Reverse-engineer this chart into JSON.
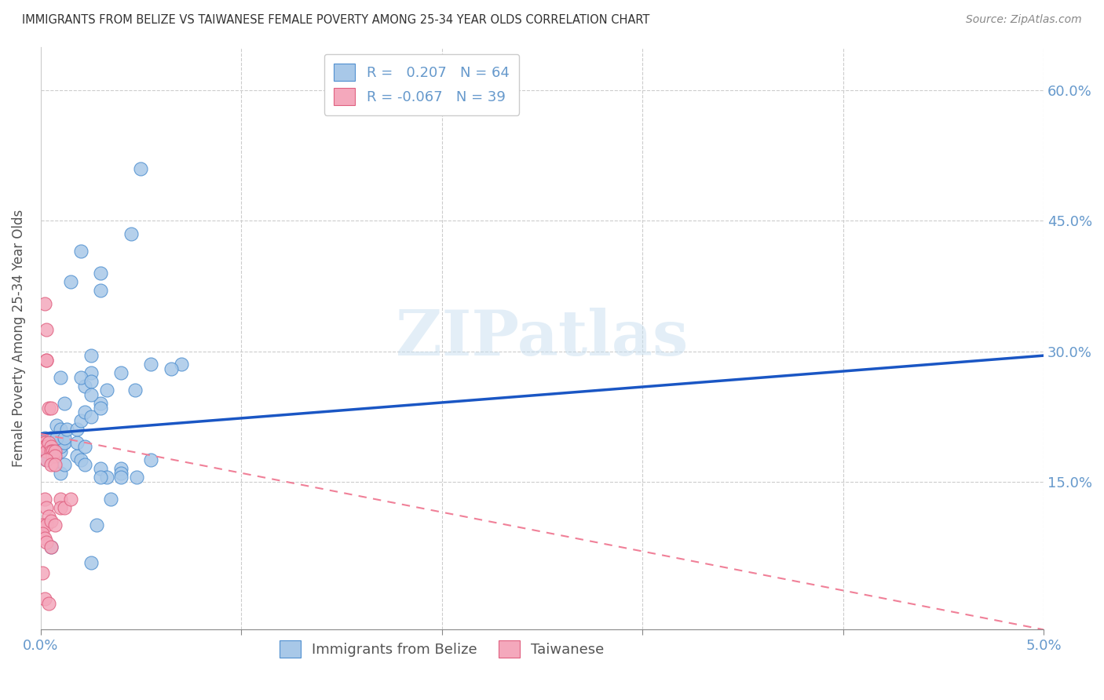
{
  "title": "IMMIGRANTS FROM BELIZE VS TAIWANESE FEMALE POVERTY AMONG 25-34 YEAR OLDS CORRELATION CHART",
  "source": "Source: ZipAtlas.com",
  "ylabel": "Female Poverty Among 25-34 Year Olds",
  "xlabel": "",
  "xlim": [
    0.0,
    5.0
  ],
  "ylim": [
    -2.0,
    65.0
  ],
  "legend_r1_label": "R =   0.207   N = 64",
  "legend_r2_label": "R = -0.067   N = 39",
  "belize_color": "#a8c8e8",
  "taiwanese_color": "#f4a8bc",
  "belize_edge_color": "#5090d0",
  "taiwanese_edge_color": "#e06080",
  "belize_line_color": "#1a56c4",
  "taiwanese_line_color": "#f08098",
  "background_color": "#ffffff",
  "grid_color": "#cccccc",
  "title_color": "#333333",
  "axis_label_color": "#6699cc",
  "belize_scatter": [
    [
      0.08,
      21.5
    ],
    [
      0.12,
      19.5
    ],
    [
      0.25,
      27.5
    ],
    [
      0.45,
      43.5
    ],
    [
      0.2,
      41.5
    ],
    [
      0.18,
      18.0
    ],
    [
      0.22,
      26.0
    ],
    [
      0.3,
      37.0
    ],
    [
      0.15,
      38.0
    ],
    [
      0.3,
      39.0
    ],
    [
      0.1,
      27.0
    ],
    [
      0.2,
      27.0
    ],
    [
      0.25,
      26.5
    ],
    [
      0.1,
      21.0
    ],
    [
      0.12,
      24.0
    ],
    [
      0.3,
      24.0
    ],
    [
      0.33,
      25.5
    ],
    [
      0.25,
      25.0
    ],
    [
      0.4,
      27.5
    ],
    [
      0.47,
      25.5
    ],
    [
      0.02,
      20.0
    ],
    [
      0.03,
      19.5
    ],
    [
      0.03,
      18.5
    ],
    [
      0.05,
      20.0
    ],
    [
      0.04,
      19.0
    ],
    [
      0.04,
      18.0
    ],
    [
      0.06,
      19.5
    ],
    [
      0.08,
      19.0
    ],
    [
      0.1,
      18.5
    ],
    [
      0.1,
      19.0
    ],
    [
      0.12,
      19.5
    ],
    [
      0.18,
      19.5
    ],
    [
      0.08,
      20.0
    ],
    [
      0.12,
      20.0
    ],
    [
      0.13,
      21.0
    ],
    [
      0.18,
      21.0
    ],
    [
      0.2,
      22.0
    ],
    [
      0.22,
      23.0
    ],
    [
      0.25,
      22.5
    ],
    [
      0.3,
      23.5
    ],
    [
      0.2,
      17.5
    ],
    [
      0.22,
      17.0
    ],
    [
      0.3,
      16.5
    ],
    [
      0.28,
      10.0
    ],
    [
      0.33,
      15.5
    ],
    [
      0.3,
      15.5
    ],
    [
      0.4,
      16.5
    ],
    [
      0.4,
      16.0
    ],
    [
      0.4,
      15.5
    ],
    [
      0.03,
      18.0
    ],
    [
      0.03,
      17.5
    ],
    [
      0.1,
      16.0
    ],
    [
      0.12,
      17.0
    ],
    [
      0.22,
      19.0
    ],
    [
      0.55,
      28.5
    ],
    [
      0.55,
      17.5
    ],
    [
      0.25,
      29.5
    ],
    [
      0.5,
      51.0
    ],
    [
      0.7,
      28.5
    ],
    [
      0.05,
      7.5
    ],
    [
      0.25,
      5.7
    ],
    [
      0.35,
      13.0
    ],
    [
      0.48,
      15.5
    ],
    [
      0.65,
      28.0
    ]
  ],
  "taiwanese_scatter": [
    [
      0.02,
      35.5
    ],
    [
      0.03,
      32.5
    ],
    [
      0.03,
      29.0
    ],
    [
      0.03,
      29.0
    ],
    [
      0.04,
      23.5
    ],
    [
      0.05,
      23.5
    ],
    [
      0.01,
      19.5
    ],
    [
      0.02,
      19.5
    ],
    [
      0.02,
      19.0
    ],
    [
      0.03,
      19.0
    ],
    [
      0.03,
      18.5
    ],
    [
      0.04,
      19.5
    ],
    [
      0.05,
      19.0
    ],
    [
      0.05,
      18.5
    ],
    [
      0.06,
      18.5
    ],
    [
      0.06,
      18.0
    ],
    [
      0.07,
      18.5
    ],
    [
      0.07,
      18.0
    ],
    [
      0.03,
      17.5
    ],
    [
      0.05,
      17.0
    ],
    [
      0.07,
      17.0
    ],
    [
      0.1,
      13.0
    ],
    [
      0.1,
      12.0
    ],
    [
      0.12,
      12.0
    ],
    [
      0.15,
      13.0
    ],
    [
      0.02,
      13.0
    ],
    [
      0.03,
      12.0
    ],
    [
      0.04,
      11.0
    ],
    [
      0.01,
      10.0
    ],
    [
      0.03,
      10.0
    ],
    [
      0.05,
      10.5
    ],
    [
      0.07,
      10.0
    ],
    [
      0.01,
      9.0
    ],
    [
      0.02,
      8.5
    ],
    [
      0.03,
      8.0
    ],
    [
      0.05,
      7.5
    ],
    [
      0.01,
      4.5
    ],
    [
      0.02,
      1.5
    ],
    [
      0.04,
      1.0
    ]
  ],
  "belize_trend_x": [
    0.0,
    5.0
  ],
  "belize_trend_y": [
    20.5,
    29.5
  ],
  "taiwanese_trend_x": [
    0.0,
    5.0
  ],
  "taiwanese_trend_y": [
    20.5,
    -2.0
  ]
}
